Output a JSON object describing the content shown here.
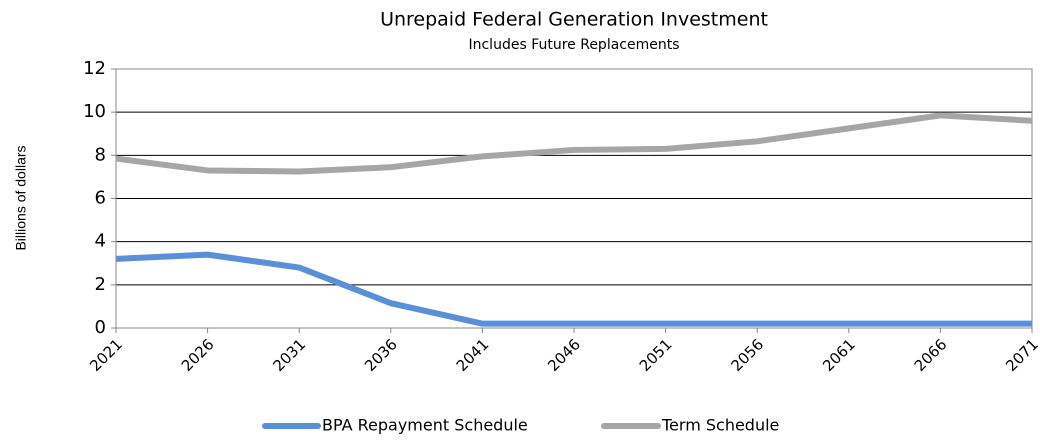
{
  "chart_data": {
    "type": "line",
    "title": "Unrepaid Federal Generation Investment",
    "subtitle": "Includes Future Replacements",
    "y_label": "Billions of dollars",
    "x": [
      2021,
      2026,
      2031,
      2036,
      2041,
      2046,
      2051,
      2056,
      2061,
      2066,
      2071
    ],
    "series": [
      {
        "name": "BPA Repayment Schedule",
        "color": "#5b8fd8",
        "values": [
          3.2,
          3.4,
          2.8,
          1.15,
          0.2,
          0.2,
          0.2,
          0.2,
          0.2,
          0.2,
          0.2
        ]
      },
      {
        "name": "Term Schedule",
        "color": "#a6a6a6",
        "values": [
          7.85,
          7.3,
          7.25,
          7.45,
          7.95,
          8.25,
          8.3,
          8.65,
          9.25,
          9.85,
          9.6
        ]
      }
    ],
    "xlim": [
      2021,
      2071
    ],
    "xticks": [
      2021,
      2026,
      2031,
      2036,
      2041,
      2046,
      2051,
      2056,
      2061,
      2066,
      2071
    ],
    "ylim": [
      0,
      12
    ],
    "yticks": [
      0,
      2,
      4,
      6,
      8,
      10,
      12
    ],
    "grid": true,
    "legend": "bottom"
  }
}
